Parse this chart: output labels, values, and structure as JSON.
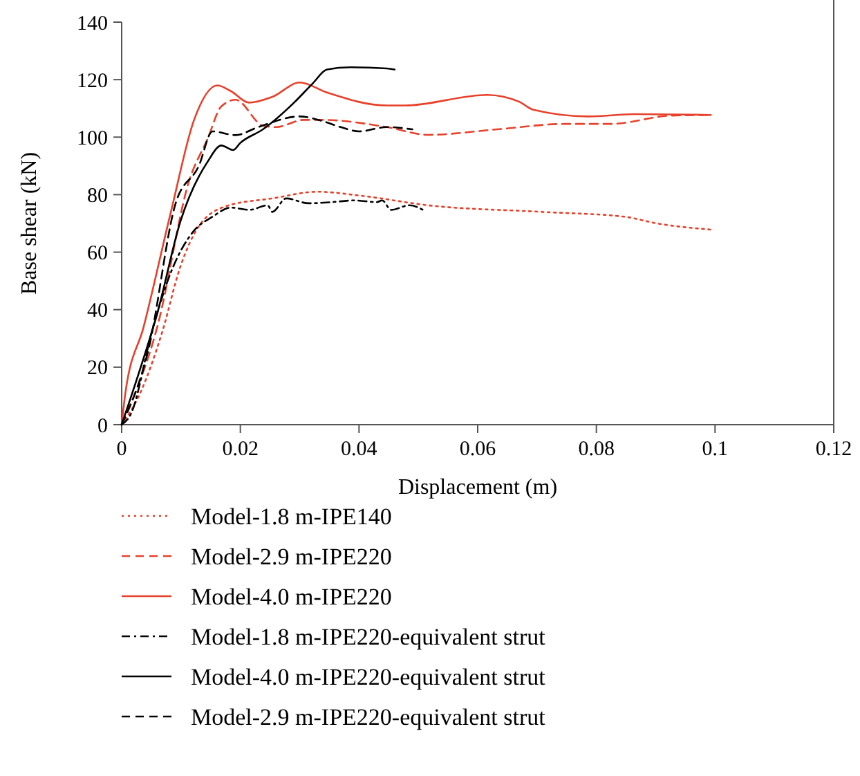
{
  "chart_data": {
    "type": "line",
    "xlabel": "Displacement (m)",
    "ylabel": "Base shear (kN)",
    "xlim": [
      0,
      0.12
    ],
    "xticks": [
      0,
      0.02,
      0.04,
      0.06,
      0.08,
      {
        "value": 0.1,
        "label": "0.1"
      },
      0.12
    ],
    "ylim": [
      0,
      140
    ],
    "yticks": [
      0,
      20,
      40,
      60,
      80,
      100,
      120,
      140
    ],
    "grid": false,
    "legend": "bottom",
    "series": [
      {
        "name": "Model-1.8 m-IPE140",
        "color": "#e8402a",
        "line_style": "dotted",
        "x": [
          0,
          0.0029,
          0.0068,
          0.0099,
          0.013,
          0.0176,
          0.0254,
          0.033,
          0.0408,
          0.0516,
          0.0709,
          0.0848,
          0.0902,
          0.0995
        ],
        "values": [
          0,
          10,
          32,
          55,
          69,
          76,
          78.7,
          81,
          79.5,
          76.3,
          74,
          72.3,
          70,
          67.8
        ]
      },
      {
        "name": "Model-2.9 m-IPE220",
        "color": "#e8402a",
        "line_style": "dashed",
        "x": [
          0,
          0.006,
          0.0114,
          0.0145,
          0.0168,
          0.0192,
          0.0238,
          0.026,
          0.0307,
          0.0338,
          0.0447,
          0.0516,
          0.0632,
          0.0748,
          0.0824,
          0.0926,
          0.0993
        ],
        "values": [
          0,
          34,
          85,
          99.5,
          110.7,
          113,
          104,
          103.5,
          106,
          106,
          103.5,
          100.8,
          102.7,
          104.6,
          104.6,
          107.5,
          107.7
        ]
      },
      {
        "name": "Model-4.0 m-IPE220",
        "color": "#e8402a",
        "line_style": "solid",
        "x": [
          0,
          0.0006,
          0.0037,
          0.0083,
          0.0122,
          0.0161,
          0.0184,
          0.0215,
          0.0254,
          0.03,
          0.0346,
          0.0447,
          0.0477,
          0.0616,
          0.067,
          0.0694,
          0.0787,
          0.0864,
          0.0993
        ],
        "values": [
          0,
          10.6,
          34,
          74,
          106,
          118,
          116,
          112,
          114,
          119,
          115.5,
          111,
          111,
          114.7,
          112.3,
          109.5,
          107.2,
          108,
          107.7
        ]
      },
      {
        "name": "Model-1.8 m-IPE220-equivalent strut",
        "color": "#000000",
        "line_style": "dashdot",
        "x": [
          0,
          0.0015,
          0.0053,
          0.0083,
          0.0122,
          0.0153,
          0.0184,
          0.0215,
          0.0246,
          0.0254,
          0.0277,
          0.0315,
          0.0354,
          0.0392,
          0.043,
          0.0439,
          0.0454,
          0.0485,
          0.0512
        ],
        "values": [
          0,
          3.5,
          34,
          53,
          67.5,
          72.3,
          75.5,
          74.7,
          76.3,
          74,
          78.7,
          77,
          77.4,
          78,
          77.4,
          78,
          74.7,
          76.3,
          74.2
        ]
      },
      {
        "name": "Model-4.0 m-IPE220-equivalent strut",
        "color": "#000000",
        "line_style": "solid",
        "x": [
          0,
          0.0029,
          0.006,
          0.0099,
          0.0145,
          0.0168,
          0.0188,
          0.02,
          0.0238,
          0.0292,
          0.0322,
          0.0346,
          0.0385,
          0.0447,
          0.046
        ],
        "values": [
          0,
          18,
          38.7,
          70.7,
          91.5,
          97.1,
          95.5,
          98,
          102.7,
          112.3,
          118.7,
          123.5,
          124.3,
          123.9,
          123.5
        ]
      },
      {
        "name": "Model-2.9 m-IPE220-equivalent strut",
        "color": "#000000",
        "line_style": "dashed",
        "x": [
          0,
          0.0045,
          0.0091,
          0.013,
          0.0153,
          0.0192,
          0.023,
          0.03,
          0.0338,
          0.0369,
          0.04,
          0.0447,
          0.049
        ],
        "values": [
          0,
          26,
          77,
          90,
          102,
          100.7,
          103.5,
          107.2,
          105.6,
          103.5,
          102,
          103.5,
          102.7
        ]
      }
    ]
  }
}
